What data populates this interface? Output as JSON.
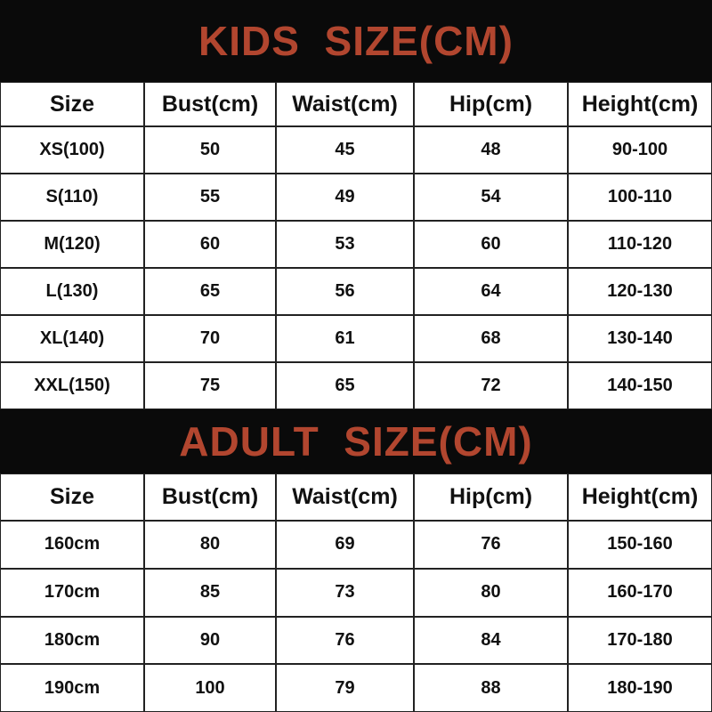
{
  "kids": {
    "title": "KIDS  SIZE(CM)",
    "header": [
      "Size",
      "Bust(cm)",
      "Waist(cm)",
      "Hip(cm)",
      "Height(cm)"
    ],
    "rows": [
      [
        "XS(100)",
        "50",
        "45",
        "48",
        "90-100"
      ],
      [
        "S(110)",
        "55",
        "49",
        "54",
        "100-110"
      ],
      [
        "M(120)",
        "60",
        "53",
        "60",
        "110-120"
      ],
      [
        "L(130)",
        "65",
        "56",
        "64",
        "120-130"
      ],
      [
        "XL(140)",
        "70",
        "61",
        "68",
        "130-140"
      ],
      [
        "XXL(150)",
        "75",
        "65",
        "72",
        "140-150"
      ]
    ]
  },
  "adult": {
    "title": "ADULT  SIZE(CM)",
    "header": [
      "Size",
      "Bust(cm)",
      "Waist(cm)",
      "Hip(cm)",
      "Height(cm)"
    ],
    "rows": [
      [
        "160cm",
        "80",
        "69",
        "76",
        "150-160"
      ],
      [
        "170cm",
        "85",
        "73",
        "80",
        "160-170"
      ],
      [
        "180cm",
        "90",
        "76",
        "84",
        "170-180"
      ],
      [
        "190cm",
        "100",
        "79",
        "88",
        "180-190"
      ]
    ]
  }
}
